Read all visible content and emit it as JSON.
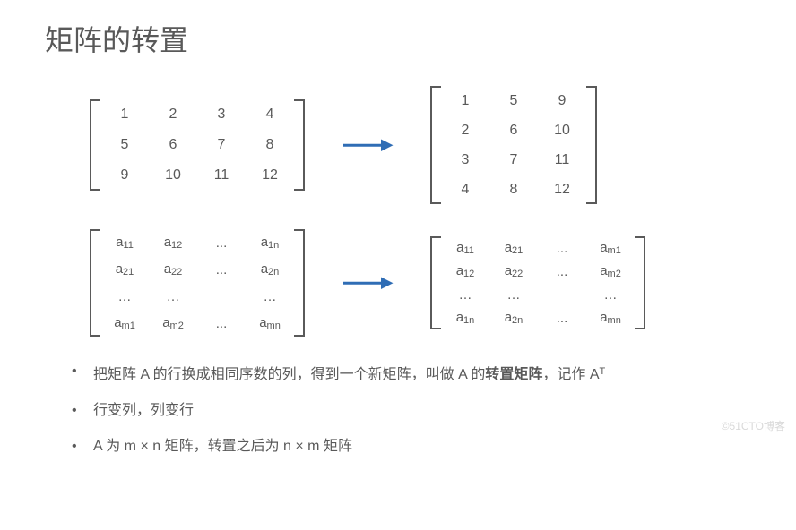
{
  "title": "矩阵的转置",
  "arrow_color": "#2f6db5",
  "text_color": "#595959",
  "bracket_color": "#5a5a5a",
  "background": "#ffffff",
  "matrix1": {
    "rows": [
      [
        "1",
        "2",
        "3",
        "4"
      ],
      [
        "5",
        "6",
        "7",
        "8"
      ],
      [
        "9",
        "10",
        "11",
        "12"
      ]
    ]
  },
  "matrix2": {
    "rows": [
      [
        "1",
        "5",
        "9"
      ],
      [
        "2",
        "6",
        "10"
      ],
      [
        "3",
        "7",
        "11"
      ],
      [
        "4",
        "8",
        "12"
      ]
    ]
  },
  "matrix3": {
    "rows": [
      [
        "a<sub>11</sub>",
        "a<sub>12</sub>",
        "...",
        "a<sub>1n</sub>"
      ],
      [
        "a<sub>21</sub>",
        "a<sub>22</sub>",
        "...",
        "a<sub>2n</sub>"
      ],
      [
        "…",
        "…",
        "",
        "…"
      ],
      [
        "a<sub>m1</sub>",
        "a<sub>m2</sub>",
        "...",
        "a<sub>mn</sub>"
      ]
    ]
  },
  "matrix4": {
    "rows": [
      [
        "a<sub>11</sub>",
        "a<sub>21</sub>",
        "...",
        "a<sub>m1</sub>"
      ],
      [
        "a<sub>12</sub>",
        "a<sub>22</sub>",
        "...",
        "a<sub>m2</sub>"
      ],
      [
        "…",
        "…",
        "",
        "…"
      ],
      [
        "a<sub>1n</sub>",
        "a<sub>2n</sub>",
        "...",
        "a<sub>mn</sub>"
      ]
    ]
  },
  "bullets": [
    "把矩阵 A 的行换成相同序数的列，得到一个新矩阵，叫做 A 的<b>转置矩阵</b>，记作 A<sup>T</sup>",
    "行变列，列变行",
    "A 为 m × n 矩阵，转置之后为 n × m 矩阵"
  ],
  "watermark": "©51CTO博客"
}
